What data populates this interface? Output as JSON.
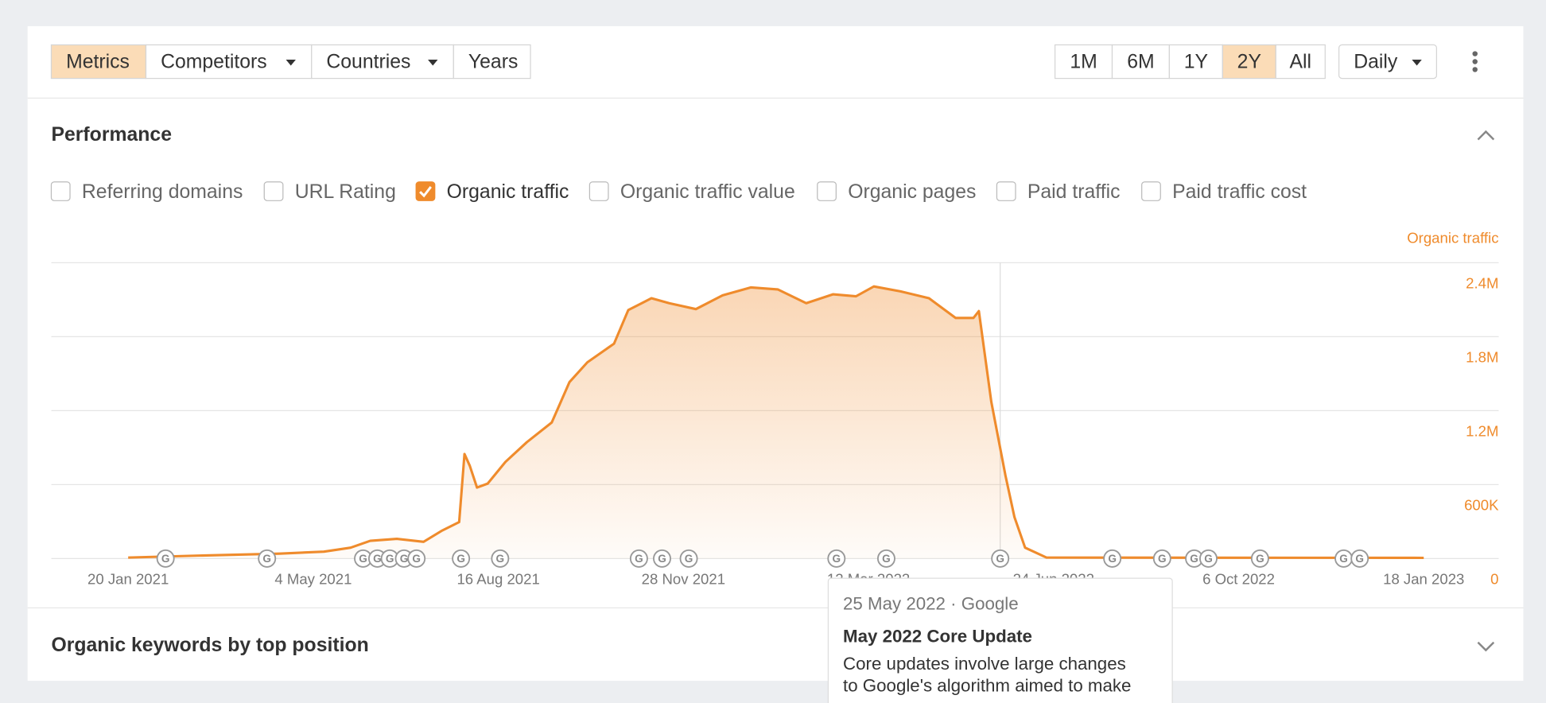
{
  "toolbar": {
    "left": [
      {
        "label": "Metrics",
        "active": true,
        "dropdown": false
      },
      {
        "label": "Competitors",
        "active": false,
        "dropdown": true
      },
      {
        "label": "Countries",
        "active": false,
        "dropdown": true
      },
      {
        "label": "Years",
        "active": false,
        "dropdown": false
      }
    ],
    "ranges": [
      {
        "label": "1M",
        "active": false
      },
      {
        "label": "6M",
        "active": false
      },
      {
        "label": "1Y",
        "active": false
      },
      {
        "label": "2Y",
        "active": true
      },
      {
        "label": "All",
        "active": false
      }
    ],
    "interval": "Daily"
  },
  "performance": {
    "title": "Performance",
    "metrics": [
      {
        "label": "Referring domains",
        "checked": false
      },
      {
        "label": "URL Rating",
        "checked": false
      },
      {
        "label": "Organic traffic",
        "checked": true
      },
      {
        "label": "Organic traffic value",
        "checked": false
      },
      {
        "label": "Organic pages",
        "checked": false
      },
      {
        "label": "Paid traffic",
        "checked": false
      },
      {
        "label": "Paid traffic cost",
        "checked": false
      }
    ]
  },
  "chart_data": {
    "type": "area",
    "y_axis_label": "Organic traffic",
    "x": [
      "2021-01-20",
      "2021-03-01",
      "2021-04-15",
      "2021-05-10",
      "2021-05-25",
      "2021-06-05",
      "2021-06-20",
      "2021-07-05",
      "2021-07-15",
      "2021-07-25",
      "2021-07-28",
      "2021-07-31",
      "2021-08-04",
      "2021-08-10",
      "2021-08-20",
      "2021-09-01",
      "2021-09-15",
      "2021-09-25",
      "2021-10-05",
      "2021-10-20",
      "2021-10-28",
      "2021-11-10",
      "2021-11-20",
      "2021-12-05",
      "2021-12-20",
      "2022-01-05",
      "2022-01-20",
      "2022-02-05",
      "2022-02-20",
      "2022-03-05",
      "2022-03-15",
      "2022-03-30",
      "2022-04-15",
      "2022-04-30",
      "2022-05-10",
      "2022-05-13",
      "2022-05-20",
      "2022-05-28",
      "2022-06-02",
      "2022-06-08",
      "2022-06-20",
      "2023-01-18"
    ],
    "series": [
      {
        "name": "Organic traffic",
        "color": "#ef8b2c",
        "values": [
          8000,
          24000,
          40000,
          56000,
          88000,
          144000,
          160000,
          136000,
          224000,
          296000,
          848000,
          752000,
          576000,
          608000,
          784000,
          944000,
          1104000,
          1432000,
          1592000,
          1744000,
          2016000,
          2112000,
          2072000,
          2024000,
          2136000,
          2200000,
          2184000,
          2072000,
          2144000,
          2128000,
          2208000,
          2168000,
          2112000,
          1952000,
          1952000,
          2008000,
          1272000,
          672000,
          336000,
          88000,
          8000,
          6000
        ]
      }
    ],
    "xlim": [
      "2021-01-20",
      "2023-01-18"
    ],
    "xticks": [
      {
        "value": "2021-01-20",
        "label": "20 Jan 2021"
      },
      {
        "value": "2021-05-04",
        "label": "4 May 2021"
      },
      {
        "value": "2021-08-16",
        "label": "16 Aug 2021"
      },
      {
        "value": "2021-11-28",
        "label": "28 Nov 2021"
      },
      {
        "value": "2022-03-12",
        "label": "12 Mar 2022"
      },
      {
        "value": "2022-06-24",
        "label": "24 Jun 2022"
      },
      {
        "value": "2022-10-06",
        "label": "6 Oct 2022"
      },
      {
        "value": "2023-01-18",
        "label": "18 Jan 2023"
      }
    ],
    "ylim": [
      0,
      2400000
    ],
    "yticks": [
      0,
      {
        "value": 600000,
        "label": "600K"
      },
      {
        "value": 1200000,
        "label": "1.2M"
      },
      {
        "value": 1800000,
        "label": "1.8M"
      },
      {
        "value": 2400000,
        "label": "2.4M"
      }
    ],
    "grid": true,
    "update_marker_label": "G",
    "google_updates": [
      "2021-02-10",
      "2021-04-08",
      "2021-06-01",
      "2021-06-09",
      "2021-06-16",
      "2021-06-24",
      "2021-07-01",
      "2021-07-26",
      "2021-08-17",
      "2021-11-03",
      "2021-11-16",
      "2021-12-01",
      "2022-02-22",
      "2022-03-22",
      "2022-05-25",
      "2022-07-27",
      "2022-08-24",
      "2022-09-11",
      "2022-09-19",
      "2022-10-18",
      "2022-12-04",
      "2022-12-13"
    ],
    "hover_x": "2022-05-25"
  },
  "tooltip": {
    "header": "25 May 2022 · Google",
    "title": "May 2022 Core Update",
    "body_lines": [
      "Core updates involve large changes",
      "to Google's algorithm aimed to make"
    ]
  },
  "keywords_section": {
    "title": "Organic keywords by top position"
  }
}
